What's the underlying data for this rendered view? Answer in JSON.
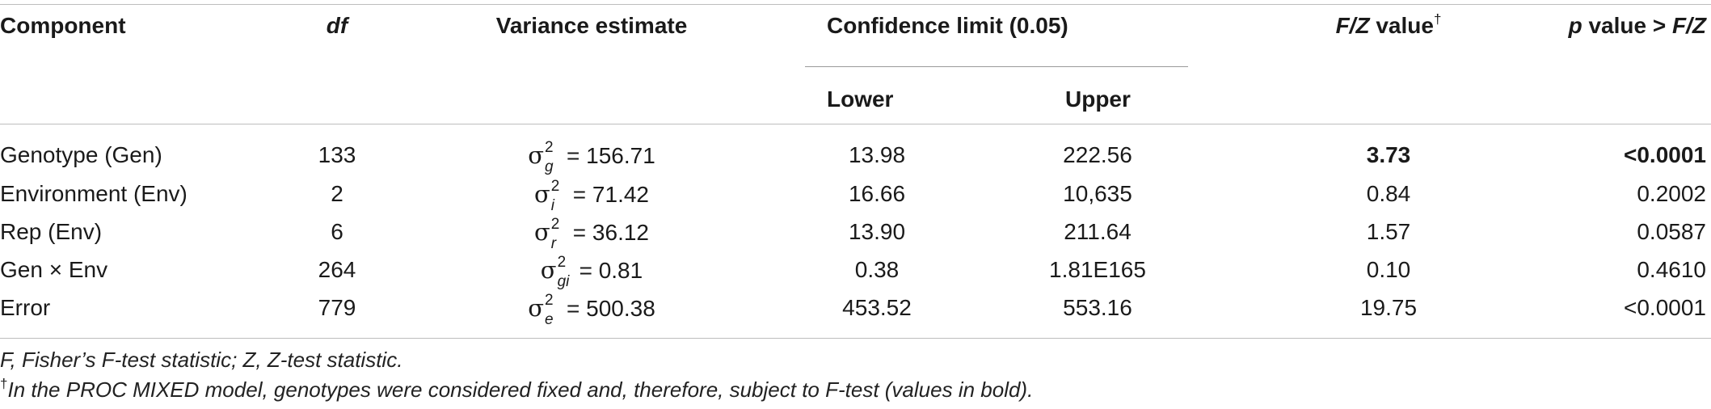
{
  "table": {
    "headers": {
      "component": "Component",
      "df": "df",
      "variance_estimate": "Variance estimate",
      "confidence_limit": "Confidence limit (0.05)",
      "lower": "Lower",
      "upper": "Upper",
      "fz_label_italic": "F/Z",
      "fz_label_rest": " value",
      "fz_mark": "†",
      "p_label_italic": "p",
      "p_label_mid": " value > ",
      "p_label_end": "F/Z"
    },
    "rows": [
      {
        "component": "Genotype (Gen)",
        "df": "133",
        "sigma": "σ",
        "sup": "2",
        "sub": "g",
        "estimate": "= 156.71",
        "lower": "13.98",
        "upper": "222.56",
        "fz": "3.73",
        "p": "<0.0001"
      },
      {
        "component": "Environment (Env)",
        "df": "2",
        "sigma": "σ",
        "sup": "2",
        "sub": "i",
        "estimate": "= 71.42",
        "lower": "16.66",
        "upper": "10,635",
        "fz": "0.84",
        "p": "0.2002"
      },
      {
        "component": "Rep (Env)",
        "df": "6",
        "sigma": "σ",
        "sup": "2",
        "sub": "r",
        "estimate": "= 36.12",
        "lower": "13.90",
        "upper": "211.64",
        "fz": "1.57",
        "p": "0.0587"
      },
      {
        "component": "Gen × Env",
        "df": "264",
        "sigma": "σ",
        "sup": "2",
        "sub": "gi",
        "estimate": "= 0.81",
        "lower": "0.38",
        "upper": "1.81E165",
        "fz": "0.10",
        "p": "0.4610"
      },
      {
        "component": "Error",
        "df": "779",
        "sigma": "σ",
        "sup": "2",
        "sub": "e",
        "estimate": "= 500.38",
        "lower": "453.52",
        "upper": "553.16",
        "fz": "19.75",
        "p": "<0.0001"
      }
    ],
    "bold_row_index": 0
  },
  "footnotes": {
    "line1": "F, Fisher’s F-test statistic; Z, Z-test statistic.",
    "line2_mark": "†",
    "line2": "In the PROC MIXED model, genotypes were considered fixed and, therefore, subject to F-test (values in bold)."
  }
}
